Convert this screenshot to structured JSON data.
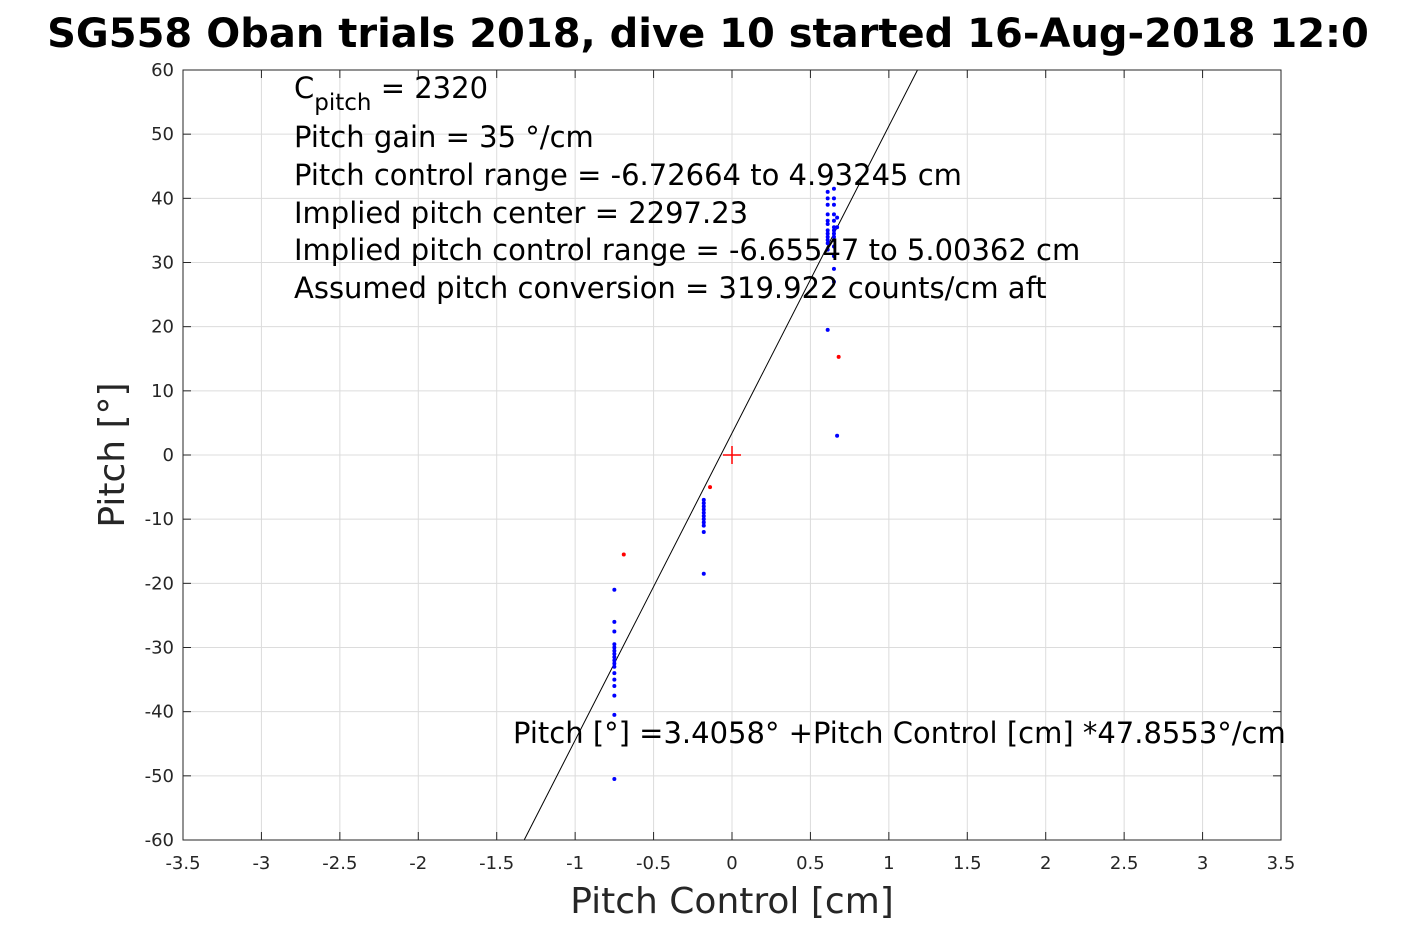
{
  "chart_data": {
    "type": "scatter",
    "title": "SG558 Oban trials 2018, dive 10 started 16-Aug-2018 12:0",
    "xlabel": "Pitch Control [cm]",
    "ylabel": "Pitch [°]",
    "xlim": [
      -3.5,
      3.5
    ],
    "ylim": [
      -60,
      60
    ],
    "grid": true,
    "xticks": [
      "-3.5",
      "-3",
      "-2.5",
      "-2",
      "-1.5",
      "-1",
      "-0.5",
      "0",
      "0.5",
      "1",
      "1.5",
      "2",
      "2.5",
      "3",
      "3.5"
    ],
    "yticks": [
      "60",
      "50",
      "40",
      "30",
      "20",
      "10",
      "0",
      "-10",
      "-20",
      "-30",
      "-40",
      "-50",
      "-60"
    ],
    "annotations": {
      "cpitch_base": "C",
      "cpitch_sub": "pitch",
      "cpitch_value": " = 2320",
      "gain": "Pitch gain = 35 °/cm",
      "control_range": "Pitch control range = -6.72664 to 4.93245 cm",
      "implied_center": "Implied pitch center = 2297.23",
      "implied_range": "Implied pitch control range = -6.65547 to 5.00362 cm",
      "conversion": "Assumed pitch conversion = 319.922 counts/cm aft",
      "fit_equation": "Pitch [°] =3.4058° +Pitch Control [cm] *47.8553°/cm"
    },
    "fit_line": {
      "intercept": 3.4058,
      "slope": 47.8553,
      "color": "#000000"
    },
    "center_marker": {
      "x": 0,
      "y": 0,
      "color": "#ff0000"
    },
    "series": [
      {
        "color": "#0000ff",
        "points": [
          [
            -0.75,
            -21
          ],
          [
            -0.75,
            -26
          ],
          [
            -0.75,
            -27.5
          ],
          [
            -0.75,
            -29.5
          ],
          [
            -0.75,
            -30
          ],
          [
            -0.75,
            -30.5
          ],
          [
            -0.75,
            -31
          ],
          [
            -0.75,
            -31.5
          ],
          [
            -0.75,
            -32
          ],
          [
            -0.75,
            -32.5
          ],
          [
            -0.75,
            -33
          ],
          [
            -0.75,
            -34
          ],
          [
            -0.75,
            -35
          ],
          [
            -0.75,
            -36
          ],
          [
            -0.75,
            -37.5
          ],
          [
            -0.75,
            -40.5
          ],
          [
            -0.75,
            -50.5
          ],
          [
            -0.18,
            -7
          ],
          [
            -0.18,
            -7.5
          ],
          [
            -0.18,
            -8
          ],
          [
            -0.18,
            -8.5
          ],
          [
            -0.18,
            -9
          ],
          [
            -0.18,
            -9.5
          ],
          [
            -0.18,
            -10
          ],
          [
            -0.18,
            -10.5
          ],
          [
            -0.18,
            -11
          ],
          [
            -0.18,
            -12
          ],
          [
            -0.18,
            -18.5
          ],
          [
            0.61,
            41
          ],
          [
            0.65,
            41.5
          ],
          [
            0.61,
            40
          ],
          [
            0.65,
            40
          ],
          [
            0.61,
            39
          ],
          [
            0.65,
            39
          ],
          [
            0.61,
            37.5
          ],
          [
            0.65,
            37.5
          ],
          [
            0.67,
            37
          ],
          [
            0.61,
            36.5
          ],
          [
            0.65,
            36.5
          ],
          [
            0.61,
            36
          ],
          [
            0.65,
            35.5
          ],
          [
            0.67,
            35.5
          ],
          [
            0.61,
            35
          ],
          [
            0.65,
            35
          ],
          [
            0.61,
            34.5
          ],
          [
            0.65,
            34.5
          ],
          [
            0.61,
            34
          ],
          [
            0.65,
            34
          ],
          [
            0.61,
            33.5
          ],
          [
            0.65,
            33.5
          ],
          [
            0.61,
            33
          ],
          [
            0.65,
            32.5
          ],
          [
            0.61,
            32
          ],
          [
            0.65,
            31
          ],
          [
            0.65,
            29
          ],
          [
            0.65,
            27
          ],
          [
            0.61,
            19.5
          ],
          [
            0.67,
            3
          ]
        ]
      },
      {
        "color": "#ff0000",
        "points": [
          [
            -0.69,
            -15.5
          ],
          [
            -0.14,
            -5
          ],
          [
            0.68,
            15.3
          ]
        ]
      }
    ]
  }
}
